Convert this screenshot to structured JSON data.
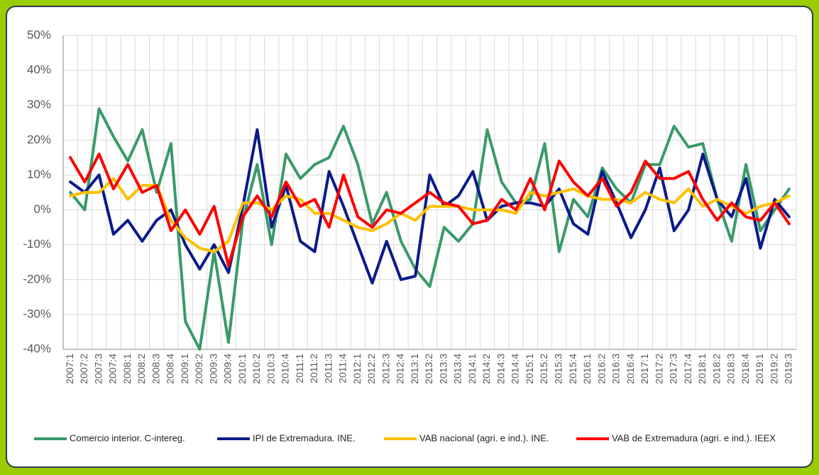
{
  "chart_data": {
    "type": "line",
    "categories": [
      "2007:1",
      "2007:2",
      "2007:3",
      "2007:4",
      "2008:1",
      "2008:2",
      "2008:3",
      "2008:4",
      "2009:1",
      "2009:2",
      "2009:3",
      "2009:4",
      "2010:1",
      "2010:2",
      "2010:3",
      "2010:4",
      "2011:1",
      "2011:2",
      "2011:3",
      "2011:4",
      "2012:1",
      "2012:2",
      "2012:3",
      "2012:4",
      "2013:1",
      "2013:2",
      "2013:3",
      "2013:4",
      "2014:1",
      "2014:2",
      "2014:3",
      "2014:4",
      "2015:1",
      "2015:2",
      "2015:3",
      "2015:4",
      "2016:1",
      "2016:2",
      "2016:3",
      "2016:4",
      "2017:1",
      "2017:2",
      "2017:3",
      "2017:4",
      "2018:1",
      "2018:2",
      "2018:3",
      "2018:4",
      "2019:1",
      "2019:2",
      "2019:3"
    ],
    "series": [
      {
        "name": "Comercio interior. C-intereg.",
        "color": "#3a9a6a",
        "values": [
          5,
          0,
          29,
          21,
          14,
          23,
          5,
          19,
          -32,
          -40,
          -12,
          -38,
          -3,
          13,
          -10,
          16,
          9,
          13,
          15,
          24,
          13,
          -4,
          5,
          -9,
          -17,
          -22,
          -5,
          -9,
          -4,
          23,
          8,
          2,
          3,
          19,
          -12,
          3,
          -2,
          12,
          6,
          2,
          13,
          13,
          24,
          18,
          19,
          3,
          -9,
          13,
          -6,
          0,
          6
        ]
      },
      {
        "name": "IPI de Extremadura. INE.",
        "color": "#0a1a8a",
        "values": [
          8,
          5,
          10,
          -7,
          -3,
          -9,
          -3,
          0,
          -10,
          -17,
          -10,
          -18,
          1,
          23,
          -5,
          7,
          -9,
          -12,
          11,
          1,
          -10,
          -21,
          -9,
          -20,
          -19,
          10,
          1,
          4,
          11,
          -3,
          1,
          2,
          2,
          1,
          6,
          -4,
          -7,
          11,
          2,
          -8,
          0,
          12,
          -6,
          0,
          16,
          3,
          -2,
          9,
          -11,
          3,
          -2
        ]
      },
      {
        "name": "VAB nacional (agri. e ind.). INE.",
        "color": "#ffc000",
        "values": [
          4,
          5,
          5,
          9,
          3,
          7,
          7,
          -3,
          -8,
          -11,
          -12,
          -9,
          2,
          2,
          0,
          4,
          3,
          -1,
          -1,
          -3,
          -5,
          -6,
          -4,
          -1,
          -3,
          1,
          1,
          1,
          0,
          0,
          0,
          -1,
          5,
          4,
          5,
          6,
          4,
          3,
          3,
          2,
          5,
          3,
          2,
          6,
          1,
          3,
          1,
          -1,
          1,
          2,
          4
        ]
      },
      {
        "name": "VAB de Extremadura (agri. e ind.). IEEX",
        "color": "#ff0000",
        "values": [
          15,
          8,
          16,
          6,
          13,
          5,
          7,
          -6,
          0,
          -7,
          1,
          -16,
          -2,
          4,
          -2,
          8,
          1,
          3,
          -5,
          10,
          -2,
          -5,
          0,
          -1,
          2,
          5,
          2,
          1,
          -4,
          -3,
          3,
          0,
          9,
          0,
          14,
          8,
          4,
          9,
          1,
          5,
          14,
          9,
          9,
          11,
          3,
          -3,
          2,
          -2,
          -3,
          2,
          -4
        ]
      }
    ],
    "ylim": [
      -40,
      50
    ],
    "yticks": [
      {
        "value": -40,
        "label": "-40%"
      },
      {
        "value": -30,
        "label": "-30%"
      },
      {
        "value": -20,
        "label": "-20%"
      },
      {
        "value": -10,
        "label": "-10%"
      },
      {
        "value": 0,
        "label": "0%"
      },
      {
        "value": 10,
        "label": "10%"
      },
      {
        "value": 20,
        "label": "20%"
      },
      {
        "value": 30,
        "label": "30%"
      },
      {
        "value": 40,
        "label": "40%"
      },
      {
        "value": 50,
        "label": "50%"
      }
    ],
    "grid": true,
    "legend": "bottom"
  }
}
